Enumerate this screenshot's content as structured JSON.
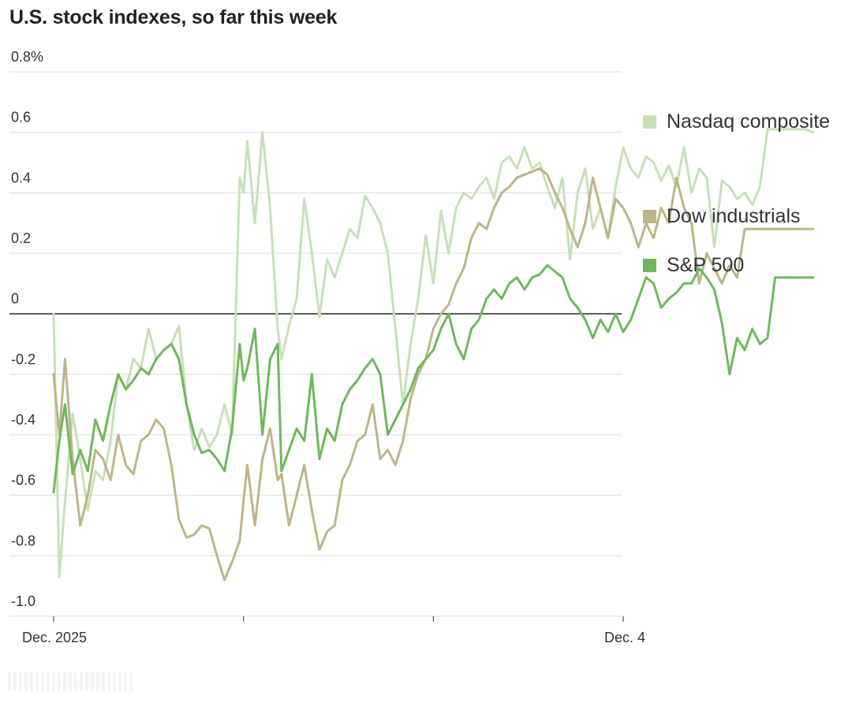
{
  "chart_data": {
    "type": "line",
    "title": "U.S. stock indexes, so far this week",
    "xlabel": "",
    "ylabel": "",
    "ylim": [
      -1.0,
      0.8
    ],
    "yticks": [
      {
        "value": 0.8,
        "label": "0.8%"
      },
      {
        "value": 0.6,
        "label": "0.6"
      },
      {
        "value": 0.4,
        "label": "0.4"
      },
      {
        "value": 0.2,
        "label": "0.2"
      },
      {
        "value": 0.0,
        "label": "0"
      },
      {
        "value": -0.2,
        "label": "-0.2"
      },
      {
        "value": -0.4,
        "label": "-0.4"
      },
      {
        "value": -0.6,
        "label": "-0.6"
      },
      {
        "value": -0.8,
        "label": "-0.8"
      },
      {
        "value": -1.0,
        "label": "-1.0"
      }
    ],
    "xlim": [
      0,
      4
    ],
    "xticks": [
      {
        "value": 0,
        "label": "Dec. 2025"
      },
      {
        "value": 1,
        "label": ""
      },
      {
        "value": 2,
        "label": ""
      },
      {
        "value": 3,
        "label": "Dec. 4"
      }
    ],
    "series": [
      {
        "name": "Nasdaq composite",
        "color": "#c6e0b8",
        "x": [
          0.0,
          0.03,
          0.06,
          0.1,
          0.14,
          0.18,
          0.22,
          0.26,
          0.3,
          0.34,
          0.38,
          0.42,
          0.46,
          0.5,
          0.54,
          0.58,
          0.62,
          0.66,
          0.7,
          0.74,
          0.78,
          0.82,
          0.86,
          0.9,
          0.94,
          0.98,
          1.0,
          1.02,
          1.06,
          1.1,
          1.14,
          1.18,
          1.2,
          1.24,
          1.28,
          1.32,
          1.36,
          1.4,
          1.44,
          1.48,
          1.52,
          1.56,
          1.6,
          1.64,
          1.68,
          1.72,
          1.76,
          1.8,
          1.84,
          1.88,
          1.92,
          1.96,
          2.0,
          2.04,
          2.08,
          2.12,
          2.16,
          2.2,
          2.24,
          2.28,
          2.32,
          2.36,
          2.4,
          2.44,
          2.48,
          2.52,
          2.56,
          2.6,
          2.64,
          2.68,
          2.72,
          2.76,
          2.8,
          2.84,
          2.88,
          2.92,
          2.96,
          3.0,
          3.04,
          3.08,
          3.12,
          3.16,
          3.2,
          3.24,
          3.28,
          3.32,
          3.36,
          3.4,
          3.44,
          3.48,
          3.52,
          3.56,
          3.6,
          3.64,
          3.68,
          3.72,
          3.76,
          3.8,
          3.84,
          3.88,
          3.92,
          3.96,
          4.0
        ],
        "values": [
          0.0,
          -0.87,
          -0.62,
          -0.33,
          -0.48,
          -0.65,
          -0.52,
          -0.55,
          -0.42,
          -0.2,
          -0.25,
          -0.15,
          -0.18,
          -0.05,
          -0.15,
          -0.12,
          -0.1,
          -0.04,
          -0.3,
          -0.45,
          -0.38,
          -0.44,
          -0.4,
          -0.3,
          -0.4,
          0.45,
          0.4,
          0.57,
          0.3,
          0.6,
          0.35,
          -0.05,
          -0.15,
          -0.04,
          0.05,
          0.38,
          0.2,
          -0.01,
          0.18,
          0.12,
          0.2,
          0.28,
          0.25,
          0.39,
          0.35,
          0.3,
          0.2,
          -0.05,
          -0.3,
          -0.1,
          0.05,
          0.26,
          0.1,
          0.34,
          0.2,
          0.35,
          0.4,
          0.38,
          0.42,
          0.45,
          0.38,
          0.5,
          0.52,
          0.48,
          0.55,
          0.48,
          0.5,
          0.42,
          0.35,
          0.45,
          0.18,
          0.4,
          0.48,
          0.28,
          0.35,
          0.25,
          0.42,
          0.55,
          0.48,
          0.45,
          0.52,
          0.5,
          0.44,
          0.49,
          0.42,
          0.55,
          0.4,
          0.48,
          0.45,
          0.22,
          0.44,
          0.42,
          0.38,
          0.4,
          0.36,
          0.42,
          0.61,
          0.61,
          0.61,
          0.61,
          0.61,
          0.61,
          0.6
        ]
      },
      {
        "name": "Dow industrials",
        "color": "#bcb588",
        "x": [
          0.0,
          0.03,
          0.06,
          0.1,
          0.14,
          0.18,
          0.22,
          0.26,
          0.3,
          0.34,
          0.38,
          0.42,
          0.46,
          0.5,
          0.54,
          0.58,
          0.62,
          0.66,
          0.7,
          0.74,
          0.78,
          0.82,
          0.86,
          0.9,
          0.94,
          0.98,
          1.0,
          1.02,
          1.06,
          1.1,
          1.14,
          1.18,
          1.2,
          1.24,
          1.28,
          1.32,
          1.36,
          1.4,
          1.44,
          1.48,
          1.52,
          1.56,
          1.6,
          1.64,
          1.68,
          1.72,
          1.76,
          1.8,
          1.84,
          1.88,
          1.92,
          1.96,
          2.0,
          2.04,
          2.08,
          2.12,
          2.16,
          2.2,
          2.24,
          2.28,
          2.32,
          2.36,
          2.4,
          2.44,
          2.48,
          2.52,
          2.56,
          2.6,
          2.64,
          2.68,
          2.72,
          2.76,
          2.8,
          2.84,
          2.88,
          2.92,
          2.96,
          3.0,
          3.04,
          3.08,
          3.12,
          3.16,
          3.2,
          3.24,
          3.28,
          3.32,
          3.36,
          3.4,
          3.44,
          3.48,
          3.52,
          3.56,
          3.6,
          3.64,
          3.68,
          3.72,
          3.76,
          3.8,
          3.84,
          3.88,
          3.92,
          3.96,
          4.0
        ],
        "values": [
          -0.2,
          -0.4,
          -0.15,
          -0.48,
          -0.7,
          -0.6,
          -0.45,
          -0.48,
          -0.55,
          -0.4,
          -0.5,
          -0.53,
          -0.42,
          -0.4,
          -0.35,
          -0.38,
          -0.5,
          -0.68,
          -0.74,
          -0.73,
          -0.7,
          -0.71,
          -0.8,
          -0.88,
          -0.82,
          -0.75,
          -0.62,
          -0.5,
          -0.7,
          -0.48,
          -0.38,
          -0.55,
          -0.53,
          -0.7,
          -0.6,
          -0.5,
          -0.65,
          -0.78,
          -0.72,
          -0.7,
          -0.55,
          -0.5,
          -0.42,
          -0.4,
          -0.3,
          -0.48,
          -0.45,
          -0.5,
          -0.42,
          -0.28,
          -0.2,
          -0.15,
          -0.05,
          0.0,
          0.03,
          0.1,
          0.15,
          0.25,
          0.3,
          0.28,
          0.35,
          0.4,
          0.42,
          0.45,
          0.46,
          0.47,
          0.48,
          0.46,
          0.4,
          0.35,
          0.28,
          0.22,
          0.3,
          0.45,
          0.35,
          0.25,
          0.38,
          0.35,
          0.3,
          0.22,
          0.3,
          0.25,
          0.35,
          0.3,
          0.45,
          0.35,
          0.3,
          0.1,
          0.2,
          0.15,
          0.1,
          0.16,
          0.12,
          0.28,
          0.28,
          0.28,
          0.28,
          0.28,
          0.28,
          0.28,
          0.28,
          0.28,
          0.28
        ]
      },
      {
        "name": "S&P 500",
        "color": "#6db85c",
        "x": [
          0.0,
          0.03,
          0.06,
          0.1,
          0.14,
          0.18,
          0.22,
          0.26,
          0.3,
          0.34,
          0.38,
          0.42,
          0.46,
          0.5,
          0.54,
          0.58,
          0.62,
          0.66,
          0.7,
          0.74,
          0.78,
          0.82,
          0.86,
          0.9,
          0.94,
          0.98,
          1.0,
          1.02,
          1.06,
          1.1,
          1.14,
          1.18,
          1.2,
          1.24,
          1.28,
          1.32,
          1.36,
          1.4,
          1.44,
          1.48,
          1.52,
          1.56,
          1.6,
          1.64,
          1.68,
          1.72,
          1.76,
          1.8,
          1.84,
          1.88,
          1.92,
          1.96,
          2.0,
          2.04,
          2.08,
          2.12,
          2.16,
          2.2,
          2.24,
          2.28,
          2.32,
          2.36,
          2.4,
          2.44,
          2.48,
          2.52,
          2.56,
          2.6,
          2.64,
          2.68,
          2.72,
          2.76,
          2.8,
          2.84,
          2.88,
          2.92,
          2.96,
          3.0,
          3.04,
          3.08,
          3.12,
          3.16,
          3.2,
          3.24,
          3.28,
          3.32,
          3.36,
          3.4,
          3.44,
          3.48,
          3.52,
          3.56,
          3.6,
          3.64,
          3.68,
          3.72,
          3.76,
          3.8,
          3.84,
          3.88,
          3.92,
          3.96,
          4.0
        ],
        "values": [
          -0.59,
          -0.42,
          -0.3,
          -0.53,
          -0.45,
          -0.52,
          -0.35,
          -0.42,
          -0.3,
          -0.2,
          -0.25,
          -0.22,
          -0.18,
          -0.2,
          -0.15,
          -0.12,
          -0.1,
          -0.15,
          -0.3,
          -0.4,
          -0.46,
          -0.45,
          -0.48,
          -0.52,
          -0.38,
          -0.1,
          -0.22,
          -0.18,
          -0.05,
          -0.4,
          -0.15,
          -0.1,
          -0.52,
          -0.45,
          -0.38,
          -0.42,
          -0.2,
          -0.48,
          -0.38,
          -0.42,
          -0.3,
          -0.25,
          -0.22,
          -0.18,
          -0.15,
          -0.2,
          -0.4,
          -0.35,
          -0.3,
          -0.25,
          -0.18,
          -0.15,
          -0.12,
          -0.05,
          0.0,
          -0.1,
          -0.15,
          -0.05,
          -0.02,
          0.05,
          0.08,
          0.05,
          0.1,
          0.12,
          0.08,
          0.12,
          0.13,
          0.16,
          0.14,
          0.12,
          0.05,
          0.02,
          -0.02,
          -0.08,
          -0.02,
          -0.06,
          0.0,
          -0.06,
          -0.02,
          0.05,
          0.12,
          0.1,
          0.02,
          0.05,
          0.07,
          0.1,
          0.1,
          0.15,
          0.12,
          0.08,
          -0.03,
          -0.2,
          -0.08,
          -0.12,
          -0.05,
          -0.1,
          -0.08,
          0.12,
          0.12,
          0.12,
          0.12,
          0.12,
          0.12
        ]
      }
    ]
  }
}
